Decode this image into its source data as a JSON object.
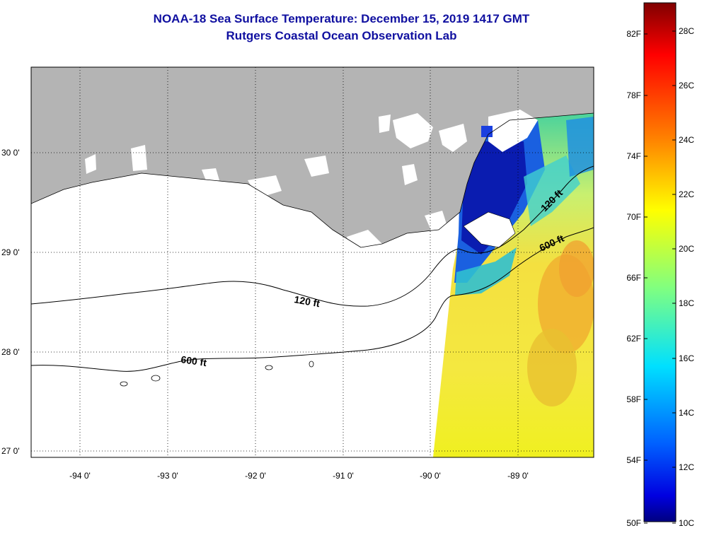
{
  "title_line1": "NOAA-18 Sea Surface Temperature:  December 15, 2019 1417 GMT",
  "title_line2": "Rutgers Coastal Ocean Observation Lab",
  "map": {
    "lat_labels": [
      "30 0'",
      "29 0'",
      "28 0'",
      "27 0'"
    ],
    "lon_labels": [
      "-94 0'",
      "-93 0'",
      "-92 0'",
      "-91 0'",
      "-90 0'",
      "-89 0'"
    ],
    "contours": [
      {
        "label": "120 ft",
        "depth_ft": 120
      },
      {
        "label": "600 ft",
        "depth_ft": 600
      },
      {
        "label": "120 ft",
        "depth_ft": 120
      },
      {
        "label": "600 ft",
        "depth_ft": 600
      }
    ],
    "colors": {
      "land": "#b4b4b4",
      "no_data": "#ffffff"
    }
  },
  "colorbar": {
    "fahrenheit": [
      "82F",
      "78F",
      "74F",
      "70F",
      "66F",
      "62F",
      "58F",
      "54F",
      "50F"
    ],
    "celsius": [
      "28C",
      "26C",
      "24C",
      "22C",
      "20C",
      "18C",
      "16C",
      "14C",
      "12C",
      "10C"
    ]
  }
}
